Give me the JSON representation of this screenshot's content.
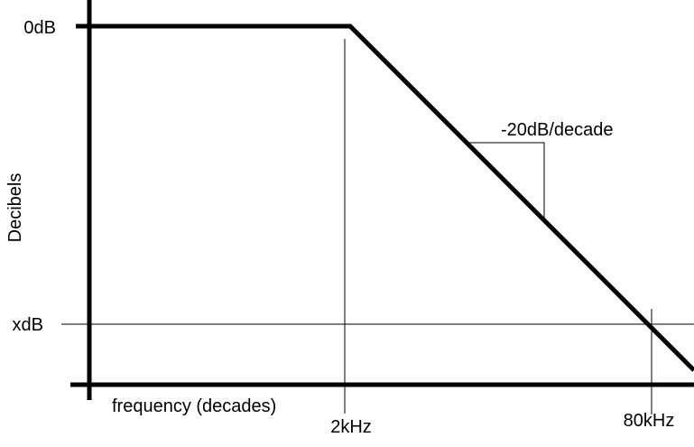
{
  "chart_data": {
    "type": "line",
    "title": "",
    "xlabel": "frequency (decades)",
    "ylabel": "Decibels",
    "x_scale": "log",
    "x_ticks": [
      "2kHz",
      "80kHz"
    ],
    "y_ticks": [
      "0dB",
      "xdB"
    ],
    "series": [
      {
        "points": [
          {
            "x": "low",
            "y": "0dB"
          },
          {
            "x": "2kHz",
            "y": "0dB"
          },
          {
            "x": "80kHz",
            "y": "xdB"
          }
        ],
        "slope_after_corner": "-20dB/decade"
      }
    ],
    "annotations": [
      {
        "text": "-20dB/decade"
      }
    ],
    "grid": false,
    "colors": {
      "line": "#000000",
      "background": "#ffffff"
    }
  }
}
